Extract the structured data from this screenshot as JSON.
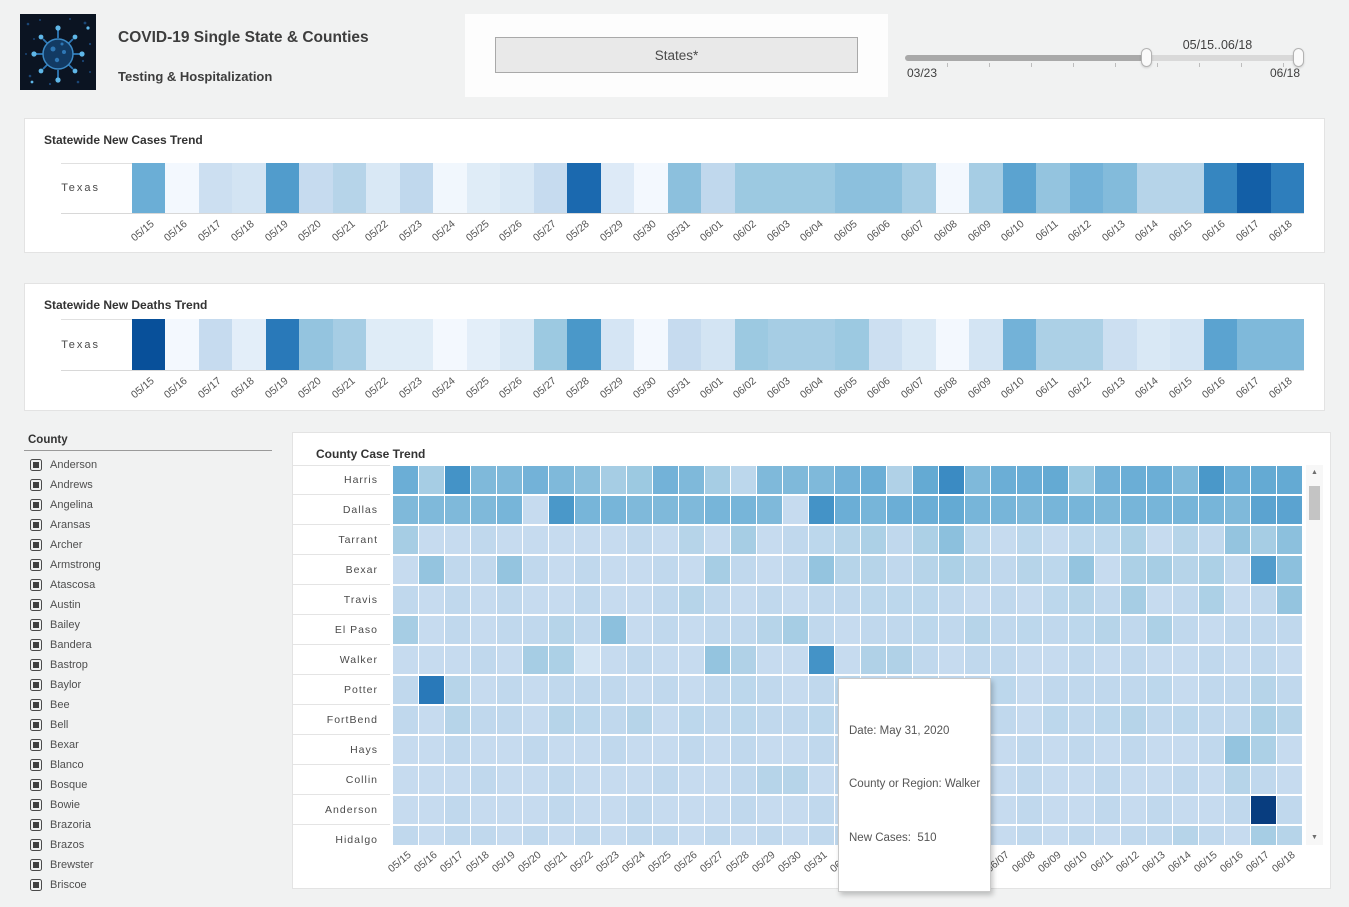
{
  "header": {
    "title": "COVID-19 Single State & Counties",
    "subtitle": "Testing & Hospitalization",
    "states_button": "States*",
    "slider": {
      "range_label": "05/15..06/18",
      "min_label": "03/23",
      "max_label": "06/18"
    }
  },
  "county_filter": {
    "label": "County",
    "checked": true,
    "items": [
      "Anderson",
      "Andrews",
      "Angelina",
      "Aransas",
      "Archer",
      "Armstrong",
      "Atascosa",
      "Austin",
      "Bailey",
      "Bandera",
      "Bastrop",
      "Baylor",
      "Bee",
      "Bell",
      "Bexar",
      "Blanco",
      "Bosque",
      "Bowie",
      "Brazoria",
      "Brazos",
      "Brewster",
      "Briscoe"
    ]
  },
  "tooltip": {
    "line1": "Date: May 31, 2020",
    "line2": "County or Region: Walker",
    "line3": "New Cases:  510"
  },
  "icons": {
    "scroll_up": "▲",
    "scroll_down": "▼"
  },
  "colors": {
    "page_bg": "#f1f2f2",
    "panel_bg": "#ffffff",
    "heatmap_max": "#08306b",
    "heatmap_dark": "#08519c",
    "heatmap_mid": "#6baed6",
    "heatmap_light": "#deebf7"
  },
  "chart_data": [
    {
      "type": "heatmap",
      "title": "Statewide New Cases Trend",
      "colorscale": "Blues",
      "values_note": "normalized color intensity 0-1 estimated from pixels",
      "x": [
        "05/15",
        "05/16",
        "05/17",
        "05/18",
        "05/19",
        "05/20",
        "05/21",
        "05/22",
        "05/23",
        "05/24",
        "05/25",
        "05/26",
        "05/27",
        "05/28",
        "05/29",
        "05/30",
        "05/31",
        "06/01",
        "06/02",
        "06/03",
        "06/04",
        "06/05",
        "06/06",
        "06/07",
        "06/08",
        "06/09",
        "06/10",
        "06/11",
        "06/12",
        "06/13",
        "06/14",
        "06/15",
        "06/16",
        "06/17",
        "06/18"
      ],
      "rows": [
        {
          "name": "Texas",
          "values": [
            0.5,
            0.02,
            0.22,
            0.18,
            0.58,
            0.25,
            0.3,
            0.15,
            0.27,
            0.03,
            0.12,
            0.15,
            0.25,
            0.78,
            0.13,
            0.02,
            0.42,
            0.27,
            0.38,
            0.38,
            0.38,
            0.42,
            0.42,
            0.35,
            0.02,
            0.35,
            0.55,
            0.4,
            0.48,
            0.44,
            0.3,
            0.3,
            0.67,
            0.82,
            0.7
          ]
        }
      ]
    },
    {
      "type": "heatmap",
      "title": "Statewide New Deaths Trend",
      "colorscale": "Blues",
      "values_note": "normalized color intensity 0-1 estimated from pixels",
      "x": [
        "05/15",
        "05/16",
        "05/17",
        "05/18",
        "05/19",
        "05/20",
        "05/21",
        "05/22",
        "05/23",
        "05/24",
        "05/25",
        "05/26",
        "05/27",
        "05/28",
        "05/29",
        "05/30",
        "05/31",
        "06/01",
        "06/02",
        "06/03",
        "06/04",
        "06/05",
        "06/06",
        "06/07",
        "06/08",
        "06/09",
        "06/10",
        "06/11",
        "06/12",
        "06/13",
        "06/14",
        "06/15",
        "06/16",
        "06/17",
        "06/18"
      ],
      "rows": [
        {
          "name": "Texas",
          "values": [
            0.88,
            0.02,
            0.25,
            0.1,
            0.72,
            0.4,
            0.35,
            0.12,
            0.12,
            0.02,
            0.1,
            0.15,
            0.38,
            0.6,
            0.17,
            0.02,
            0.25,
            0.18,
            0.38,
            0.35,
            0.35,
            0.38,
            0.22,
            0.15,
            0.02,
            0.18,
            0.48,
            0.33,
            0.33,
            0.22,
            0.15,
            0.18,
            0.55,
            0.45,
            0.45
          ]
        }
      ]
    },
    {
      "type": "heatmap",
      "title": "County Case Trend",
      "colorscale": "Blues",
      "values_note": "normalized color intensity 0-1 estimated from pixels",
      "known_point": {
        "date": "May 31, 2020",
        "county_or_region": "Walker",
        "new_cases": 510
      },
      "x": [
        "05/15",
        "05/16",
        "05/17",
        "05/18",
        "05/19",
        "05/20",
        "05/21",
        "05/22",
        "05/23",
        "05/24",
        "05/25",
        "05/26",
        "05/27",
        "05/28",
        "05/29",
        "05/30",
        "05/31",
        "06/01",
        "06/02",
        "06/03",
        "06/04",
        "06/05",
        "06/06",
        "06/07",
        "06/08",
        "06/09",
        "06/10",
        "06/11",
        "06/12",
        "06/13",
        "06/14",
        "06/15",
        "06/16",
        "06/17",
        "06/18"
      ],
      "rows": [
        {
          "name": "Harris",
          "values": [
            0.5,
            0.35,
            0.62,
            0.45,
            0.45,
            0.48,
            0.45,
            0.42,
            0.35,
            0.38,
            0.48,
            0.45,
            0.35,
            0.28,
            0.45,
            0.45,
            0.45,
            0.48,
            0.5,
            0.32,
            0.52,
            0.65,
            0.45,
            0.5,
            0.5,
            0.52,
            0.38,
            0.48,
            0.5,
            0.5,
            0.45,
            0.6,
            0.5,
            0.52,
            0.52
          ]
        },
        {
          "name": "Dallas",
          "values": [
            0.45,
            0.45,
            0.45,
            0.45,
            0.47,
            0.25,
            0.6,
            0.47,
            0.47,
            0.45,
            0.45,
            0.45,
            0.47,
            0.47,
            0.45,
            0.25,
            0.62,
            0.5,
            0.47,
            0.5,
            0.5,
            0.52,
            0.47,
            0.47,
            0.45,
            0.47,
            0.47,
            0.45,
            0.47,
            0.47,
            0.47,
            0.47,
            0.45,
            0.55,
            0.55
          ]
        },
        {
          "name": "Tarrant",
          "values": [
            0.35,
            0.25,
            0.25,
            0.27,
            0.25,
            0.25,
            0.25,
            0.25,
            0.25,
            0.27,
            0.25,
            0.3,
            0.25,
            0.35,
            0.25,
            0.27,
            0.28,
            0.3,
            0.33,
            0.27,
            0.33,
            0.42,
            0.28,
            0.25,
            0.28,
            0.25,
            0.28,
            0.28,
            0.33,
            0.25,
            0.3,
            0.27,
            0.4,
            0.35,
            0.42
          ]
        },
        {
          "name": "Bexar",
          "values": [
            0.25,
            0.4,
            0.27,
            0.27,
            0.4,
            0.27,
            0.25,
            0.27,
            0.25,
            0.25,
            0.27,
            0.25,
            0.35,
            0.27,
            0.25,
            0.27,
            0.4,
            0.3,
            0.3,
            0.27,
            0.3,
            0.33,
            0.3,
            0.27,
            0.3,
            0.28,
            0.4,
            0.25,
            0.33,
            0.35,
            0.3,
            0.33,
            0.27,
            0.58,
            0.42
          ]
        },
        {
          "name": "Travis",
          "values": [
            0.27,
            0.25,
            0.27,
            0.25,
            0.27,
            0.25,
            0.25,
            0.27,
            0.25,
            0.25,
            0.27,
            0.3,
            0.27,
            0.25,
            0.27,
            0.25,
            0.27,
            0.27,
            0.28,
            0.28,
            0.28,
            0.27,
            0.25,
            0.27,
            0.25,
            0.28,
            0.3,
            0.27,
            0.35,
            0.25,
            0.27,
            0.33,
            0.25,
            0.27,
            0.4
          ]
        },
        {
          "name": "El Paso",
          "values": [
            0.35,
            0.25,
            0.27,
            0.25,
            0.27,
            0.27,
            0.3,
            0.27,
            0.42,
            0.25,
            0.27,
            0.25,
            0.27,
            0.27,
            0.3,
            0.35,
            0.27,
            0.25,
            0.27,
            0.27,
            0.28,
            0.27,
            0.3,
            0.27,
            0.28,
            0.27,
            0.28,
            0.3,
            0.27,
            0.33,
            0.27,
            0.25,
            0.27,
            0.27,
            0.27
          ]
        },
        {
          "name": "Walker",
          "values": [
            0.25,
            0.25,
            0.25,
            0.27,
            0.25,
            0.35,
            0.33,
            0.18,
            0.25,
            0.27,
            0.25,
            0.25,
            0.4,
            0.32,
            0.25,
            0.25,
            0.62,
            0.25,
            0.32,
            0.32,
            0.27,
            0.25,
            0.27,
            0.27,
            0.25,
            0.25,
            0.27,
            0.25,
            0.27,
            0.25,
            0.25,
            0.27,
            0.25,
            0.27,
            0.25
          ]
        },
        {
          "name": "Potter",
          "values": [
            0.27,
            0.72,
            0.3,
            0.25,
            0.27,
            0.25,
            0.27,
            0.27,
            0.27,
            0.25,
            0.27,
            0.25,
            0.27,
            0.28,
            0.27,
            0.25,
            0.27,
            0.28,
            0.27,
            0.27,
            0.28,
            0.27,
            0.27,
            0.28,
            0.25,
            0.27,
            0.27,
            0.27,
            0.27,
            0.28,
            0.25,
            0.27,
            0.27,
            0.3,
            0.27
          ]
        },
        {
          "name": "FortBend",
          "values": [
            0.27,
            0.25,
            0.3,
            0.27,
            0.27,
            0.25,
            0.3,
            0.28,
            0.27,
            0.3,
            0.25,
            0.28,
            0.27,
            0.28,
            0.27,
            0.27,
            0.28,
            0.27,
            0.28,
            0.27,
            0.28,
            0.25,
            0.3,
            0.27,
            0.25,
            0.28,
            0.27,
            0.28,
            0.3,
            0.27,
            0.28,
            0.27,
            0.27,
            0.33,
            0.3
          ]
        },
        {
          "name": "Hays",
          "values": [
            0.25,
            0.25,
            0.27,
            0.25,
            0.25,
            0.27,
            0.25,
            0.25,
            0.27,
            0.25,
            0.25,
            0.27,
            0.25,
            0.27,
            0.25,
            0.25,
            0.27,
            0.27,
            0.25,
            0.27,
            0.25,
            0.27,
            0.25,
            0.25,
            0.27,
            0.25,
            0.27,
            0.25,
            0.27,
            0.25,
            0.25,
            0.27,
            0.4,
            0.33,
            0.25
          ]
        },
        {
          "name": "Collin",
          "values": [
            0.25,
            0.25,
            0.25,
            0.27,
            0.25,
            0.25,
            0.27,
            0.25,
            0.25,
            0.25,
            0.27,
            0.25,
            0.25,
            0.27,
            0.3,
            0.3,
            0.25,
            0.27,
            0.25,
            0.25,
            0.27,
            0.25,
            0.25,
            0.25,
            0.27,
            0.25,
            0.25,
            0.27,
            0.25,
            0.25,
            0.27,
            0.25,
            0.3,
            0.27,
            0.25
          ]
        },
        {
          "name": "Anderson",
          "values": [
            0.25,
            0.25,
            0.27,
            0.25,
            0.25,
            0.25,
            0.27,
            0.25,
            0.25,
            0.27,
            0.25,
            0.25,
            0.25,
            0.27,
            0.25,
            0.25,
            0.27,
            0.25,
            0.27,
            0.25,
            0.25,
            0.27,
            0.25,
            0.25,
            0.27,
            0.25,
            0.25,
            0.27,
            0.25,
            0.27,
            0.25,
            0.25,
            0.27,
            0.95,
            0.27
          ]
        },
        {
          "name": "Hidalgo",
          "values": [
            0.27,
            0.25,
            0.27,
            0.27,
            0.25,
            0.27,
            0.25,
            0.27,
            0.25,
            0.27,
            0.27,
            0.25,
            0.27,
            0.25,
            0.27,
            0.25,
            0.27,
            0.27,
            0.25,
            0.27,
            0.25,
            0.27,
            0.27,
            0.25,
            0.27,
            0.25,
            0.27,
            0.25,
            0.27,
            0.27,
            0.3,
            0.27,
            0.25,
            0.35,
            0.3
          ]
        }
      ]
    }
  ]
}
